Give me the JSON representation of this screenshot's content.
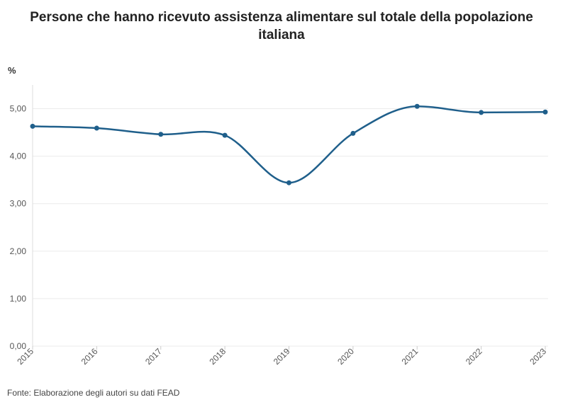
{
  "chart_data": {
    "type": "line",
    "title_lines": [
      "Persone che hanno ricevuto assistenza alimentare sul totale della popolazione",
      "italiana"
    ],
    "ylabel": "%",
    "source": "Fonte: Elaborazione degli autori su dati FEAD",
    "x": [
      "2015",
      "2016",
      "2017",
      "2018",
      "2019",
      "2020",
      "2021",
      "2022",
      "2023"
    ],
    "series": [
      {
        "values": [
          4.63,
          4.59,
          4.46,
          4.44,
          3.44,
          4.48,
          5.05,
          4.92,
          4.93
        ],
        "color": "#1f5f8b"
      }
    ],
    "yticks": [
      "0,00",
      "1,00",
      "2,00",
      "3,00",
      "4,00",
      "5,00"
    ],
    "ylim": [
      0,
      5.5
    ],
    "grid": true,
    "line_color": "#1f5f8b",
    "grid_color": "#ebebeb"
  }
}
